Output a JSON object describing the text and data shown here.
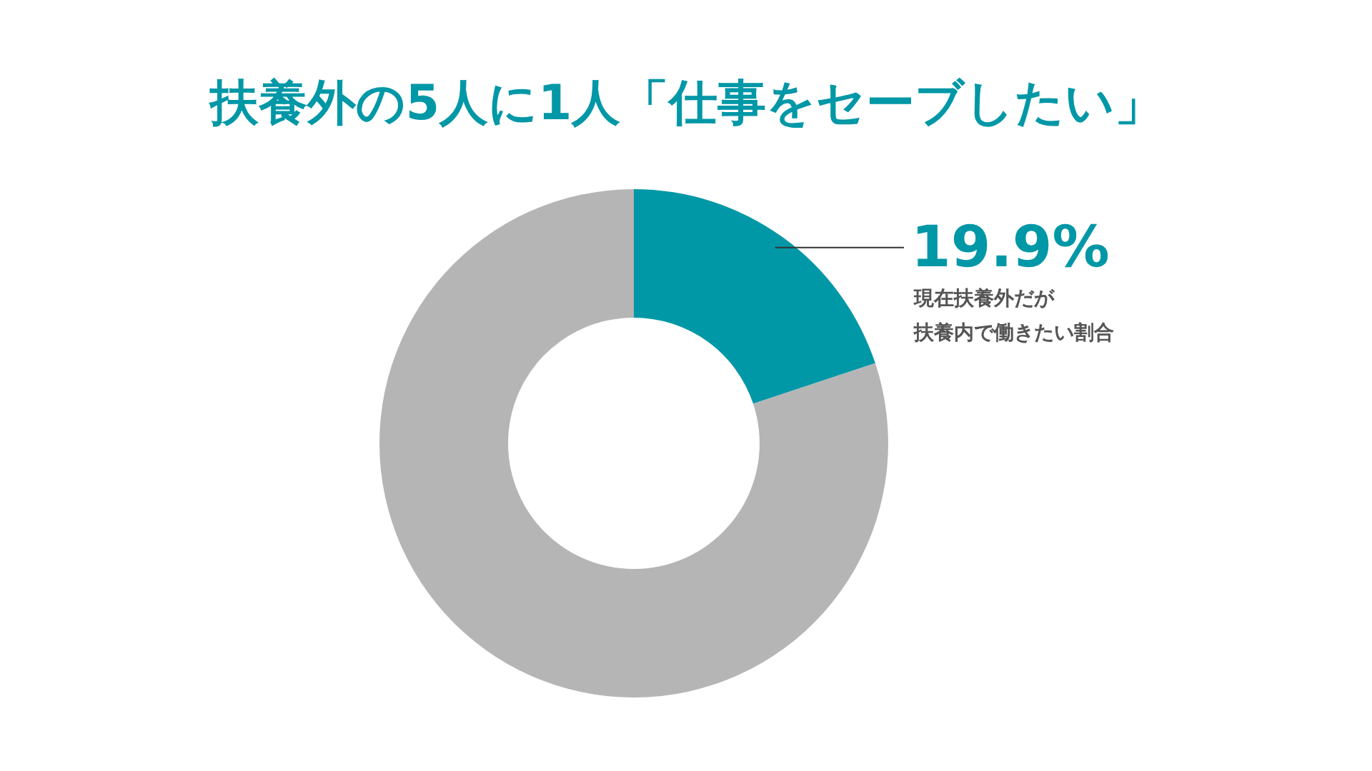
{
  "chart_data": {
    "type": "donut",
    "title": "扶養外の5人に1人「仕事をセーブしたい」",
    "categories": [
      "現在扶養外だが扶養内で働きたい割合",
      null
    ],
    "values": [
      19.9,
      80.1
    ],
    "colors": [
      "#0097a7",
      "#b5b5b5"
    ],
    "value_labels": [
      "19.9%",
      null
    ]
  }
}
